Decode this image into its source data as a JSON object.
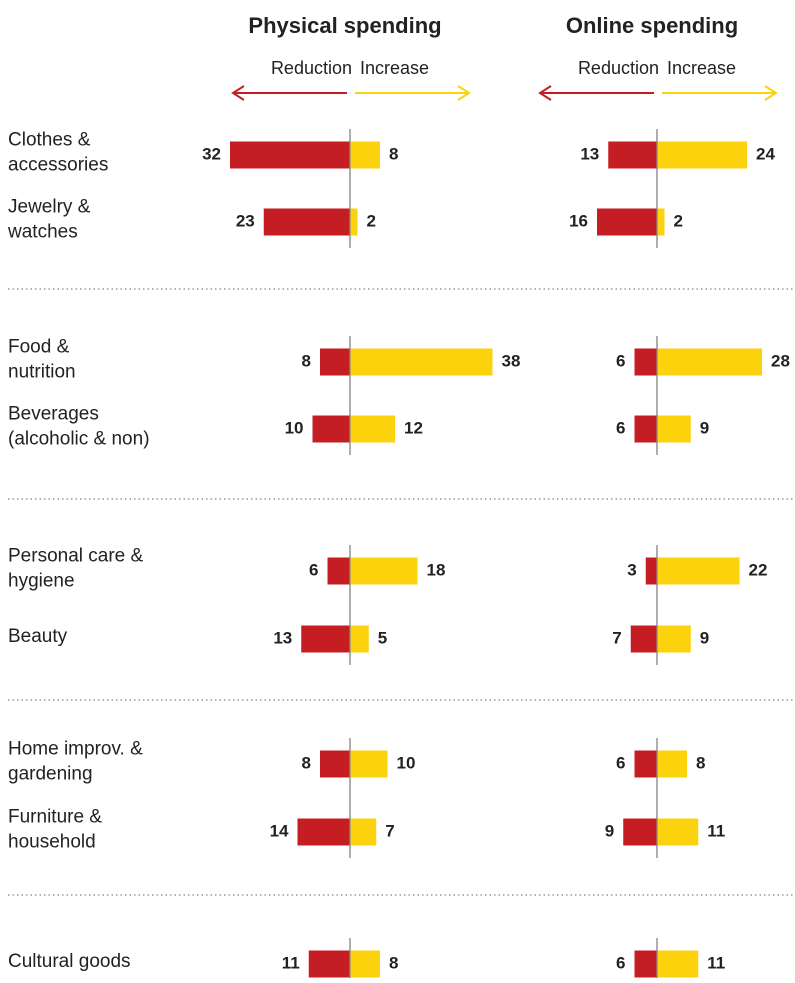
{
  "chart_data": {
    "type": "diverging-bar",
    "categories": [
      [
        "Clothes &",
        "accessories"
      ],
      [
        "Jewelry &",
        "watches"
      ],
      [
        "Food &",
        "nutrition"
      ],
      [
        "Beverages",
        "(alcoholic & non)"
      ],
      [
        "Personal care &",
        "hygiene"
      ],
      [
        "Beauty"
      ],
      [
        "Home improv. &",
        "gardening"
      ],
      [
        "Furniture &",
        "household"
      ],
      [
        "Cultural goods"
      ]
    ],
    "panels": [
      {
        "title": "Physical spending",
        "series": [
          {
            "name": "Reduction",
            "color": "#c41e24",
            "values": [
              32,
              23,
              8,
              10,
              6,
              13,
              8,
              14,
              11
            ]
          },
          {
            "name": "Increase",
            "color": "#fcd20c",
            "values": [
              8,
              2,
              38,
              12,
              18,
              5,
              10,
              7,
              8
            ]
          }
        ]
      },
      {
        "title": "Online spending",
        "series": [
          {
            "name": "Reduction",
            "color": "#c41e24",
            "values": [
              13,
              16,
              6,
              6,
              3,
              7,
              6,
              9,
              6
            ]
          },
          {
            "name": "Increase",
            "color": "#fcd20c",
            "values": [
              24,
              2,
              28,
              9,
              22,
              9,
              8,
              11,
              11
            ]
          }
        ]
      }
    ]
  }
}
